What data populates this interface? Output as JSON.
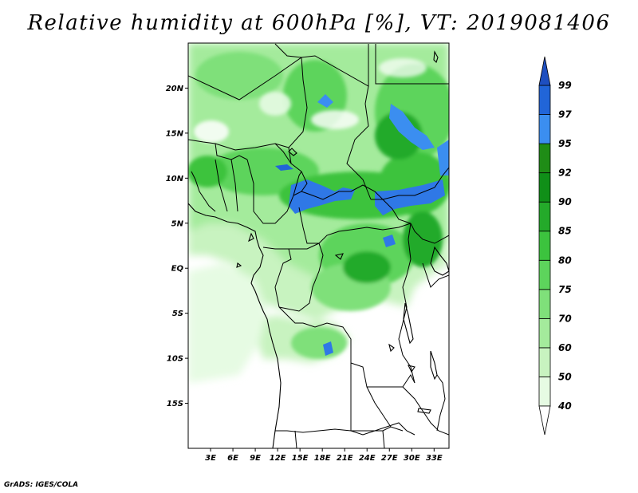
{
  "title": "Relative humidity at 600hPa [%], VT: 2019081406",
  "credit": "GrADS: IGES/COLA",
  "map": {
    "lon_range": [
      0,
      35
    ],
    "lat_range": [
      -20,
      25
    ],
    "lon_ticks": [
      "3E",
      "6E",
      "9E",
      "12E",
      "15E",
      "18E",
      "21E",
      "24E",
      "27E",
      "30E",
      "33E"
    ],
    "lat_ticks": [
      "20N",
      "15N",
      "10N",
      "5N",
      "EQ",
      "5S",
      "10S",
      "15S"
    ]
  },
  "colorbar": {
    "levels": [
      "40",
      "50",
      "60",
      "70",
      "75",
      "80",
      "85",
      "90",
      "92",
      "95",
      "97",
      "99"
    ],
    "colors": [
      "#ffffff",
      "#e6fbe3",
      "#c8f3c0",
      "#a4eb9c",
      "#7fe07a",
      "#5dd45c",
      "#3cc33e",
      "#24aa2a",
      "#108f18",
      "#1f8c16",
      "#3b8ef0",
      "#2165d8",
      "#1e4fc0"
    ]
  },
  "chart_data": {
    "type": "heatmap",
    "title": "Relative humidity at 600hPa [%], VT: 2019081406",
    "variable": "Relative humidity",
    "level": "600hPa",
    "unit": "%",
    "valid_time": "2019081406",
    "x_range": [
      0,
      35
    ],
    "y_range": [
      -20,
      25
    ],
    "color_levels": [
      40,
      50,
      60,
      70,
      75,
      80,
      85,
      90,
      92,
      95,
      97,
      99
    ]
  }
}
